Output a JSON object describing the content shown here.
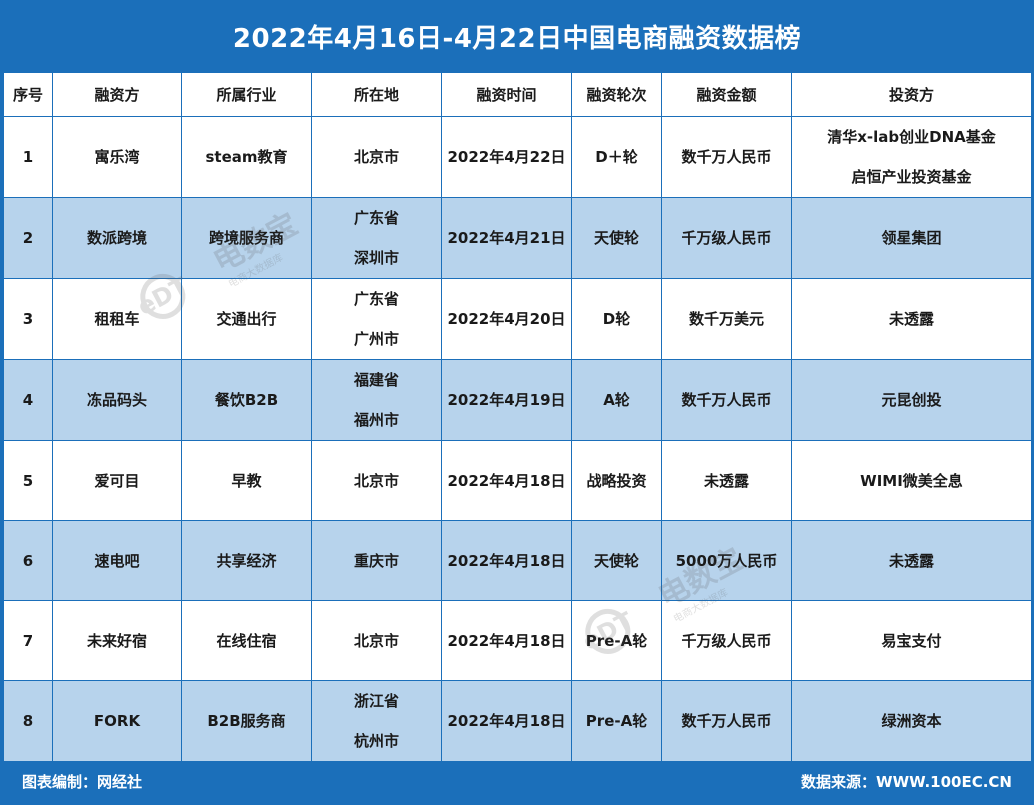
{
  "title": "2022年4月16日-4月22日中国电商融资数据榜",
  "headers": [
    "序号",
    "融资方",
    "所属行业",
    "所在地",
    "融资时间",
    "融资轮次",
    "融资金额",
    "投资方"
  ],
  "rows": [
    {
      "no": "1",
      "company": "寓乐湾",
      "industry": "steam教育",
      "location": [
        "北京市"
      ],
      "date": "2022年4月22日",
      "round": "D＋轮",
      "amount": "数千万人民币",
      "investors": [
        "清华x-lab创业DNA基金",
        "启恒产业投资基金"
      ]
    },
    {
      "no": "2",
      "company": "数派跨境",
      "industry": "跨境服务商",
      "location": [
        "广东省",
        "深圳市"
      ],
      "date": "2022年4月21日",
      "round": "天使轮",
      "amount": "千万级人民币",
      "investors": [
        "领星集团"
      ]
    },
    {
      "no": "3",
      "company": "租租车",
      "industry": "交通出行",
      "location": [
        "广东省",
        "广州市"
      ],
      "date": "2022年4月20日",
      "round": "D轮",
      "amount": "数千万美元",
      "investors": [
        "未透露"
      ]
    },
    {
      "no": "4",
      "company": "冻品码头",
      "industry": "餐饮B2B",
      "location": [
        "福建省",
        "福州市"
      ],
      "date": "2022年4月19日",
      "round": "A轮",
      "amount": "数千万人民币",
      "investors": [
        "元昆创投"
      ]
    },
    {
      "no": "5",
      "company": "爱可目",
      "industry": "早教",
      "location": [
        "北京市"
      ],
      "date": "2022年4月18日",
      "round": "战略投资",
      "amount": "未透露",
      "investors": [
        "WIMI微美全息"
      ]
    },
    {
      "no": "6",
      "company": "速电吧",
      "industry": "共享经济",
      "location": [
        "重庆市"
      ],
      "date": "2022年4月18日",
      "round": "天使轮",
      "amount": "5000万人民币",
      "investors": [
        "未透露"
      ]
    },
    {
      "no": "7",
      "company": "未来好宿",
      "industry": "在线住宿",
      "location": [
        "北京市"
      ],
      "date": "2022年4月18日",
      "round": "Pre-A轮",
      "amount": "千万级人民币",
      "investors": [
        "易宝支付"
      ]
    },
    {
      "no": "8",
      "company": "FORK",
      "industry": "B2B服务商",
      "location": [
        "浙江省",
        "杭州市"
      ],
      "date": "2022年4月18日",
      "round": "Pre-A轮",
      "amount": "数千万人民币",
      "investors": [
        "绿洲资本"
      ]
    }
  ],
  "footer": {
    "left": "图表编制：网经社",
    "right": "数据来源：WWW.100EC.CN"
  },
  "watermark": {
    "logo": "eDT",
    "brand": "电数宝",
    "tagline": "电商大数据库"
  },
  "colors": {
    "frame": "#1b6fba",
    "alt_row": "#b7d3ec",
    "text": "#1a1a1a"
  }
}
